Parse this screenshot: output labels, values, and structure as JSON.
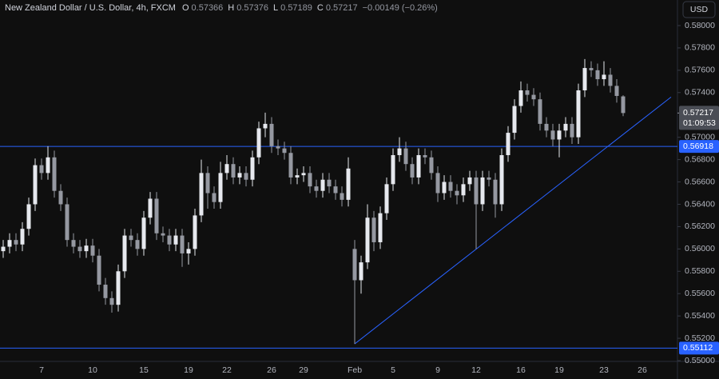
{
  "chart_data": {
    "type": "candlestick",
    "title": "New Zealand Dollar / U.S. Dollar, 4h, FXCM",
    "ohlc_labels": [
      "O",
      "H",
      "L",
      "C"
    ],
    "ohlc": [
      0.57366,
      0.57376,
      0.57189,
      0.57217
    ],
    "change": "−0.00149 (−0.26%)",
    "currency": "USD",
    "categories": [
      null,
      null,
      null,
      null,
      null,
      null,
      "7",
      null,
      null,
      null,
      null,
      null,
      null,
      null,
      "10",
      null,
      null,
      null,
      null,
      null,
      null,
      null,
      "15",
      null,
      null,
      null,
      null,
      null,
      null,
      "19",
      null,
      null,
      null,
      null,
      null,
      "22",
      null,
      null,
      null,
      null,
      null,
      null,
      "26",
      null,
      null,
      null,
      null,
      "29",
      null,
      null,
      null,
      null,
      null,
      null,
      null,
      "Feb",
      null,
      null,
      null,
      null,
      null,
      "5",
      null,
      null,
      null,
      null,
      null,
      null,
      "9",
      null,
      null,
      null,
      null,
      null,
      "12",
      null,
      null,
      null,
      null,
      null,
      null,
      "16",
      null,
      null,
      null,
      null,
      null,
      "19",
      null,
      null,
      null,
      null,
      null,
      null,
      "23",
      null,
      null,
      null,
      null,
      null,
      "26"
    ],
    "open": [
      0.5598,
      0.5602,
      0.5608,
      0.5604,
      0.5618,
      0.564,
      0.5675,
      0.5668,
      0.5682,
      0.5652,
      0.564,
      0.5608,
      0.5602,
      0.5598,
      0.5603,
      0.5594,
      0.5568,
      0.5556,
      0.555,
      0.558,
      0.5612,
      0.5608,
      0.56,
      0.5628,
      0.5645,
      0.5614,
      0.5612,
      0.5604,
      0.5612,
      0.5596,
      0.56,
      0.563,
      0.5668,
      0.565,
      0.5642,
      0.5668,
      0.5676,
      0.5664,
      0.5668,
      0.5662,
      0.5682,
      0.5708,
      0.5712,
      0.5692,
      0.569,
      0.5686,
      0.5664,
      0.5666,
      0.5668,
      0.5656,
      0.5652,
      0.5662,
      0.5656,
      0.565,
      0.5644,
      0.56,
      0.5572,
      0.5588,
      0.5628,
      0.5606,
      0.5632,
      0.5658,
      0.5684,
      0.569,
      0.5676,
      0.5664,
      0.5684,
      0.5682,
      0.5668,
      0.565,
      0.566,
      0.5652,
      0.5648,
      0.5658,
      0.5664,
      0.564,
      0.5664,
      0.5662,
      0.564,
      0.5684,
      0.5704,
      0.5728,
      0.5742,
      0.5738,
      0.5734,
      0.5712,
      0.5706,
      0.5698,
      0.5706,
      0.5712,
      0.57,
      0.5742,
      0.5762,
      0.576,
      0.5752,
      0.5756,
      0.5746,
      0.57366,
      null,
      null,
      null
    ],
    "high": [
      0.5608,
      0.5614,
      0.5614,
      0.5624,
      0.5646,
      0.5681,
      0.5681,
      0.5692,
      0.5688,
      0.5658,
      0.5646,
      0.5614,
      0.5608,
      0.5609,
      0.5609,
      0.56,
      0.5574,
      0.5562,
      0.5586,
      0.5618,
      0.5618,
      0.5614,
      0.5634,
      0.5651,
      0.5651,
      0.562,
      0.5618,
      0.5618,
      0.5618,
      0.5606,
      0.5636,
      0.568,
      0.5674,
      0.5656,
      0.5678,
      0.5684,
      0.5682,
      0.5674,
      0.5674,
      0.5688,
      0.5714,
      0.5722,
      0.5718,
      0.5698,
      0.5696,
      0.5692,
      0.5672,
      0.5674,
      0.5674,
      0.5662,
      0.5668,
      0.5668,
      0.5662,
      0.5656,
      0.5682,
      0.5608,
      0.5594,
      0.564,
      0.5634,
      0.5638,
      0.5664,
      0.569,
      0.57,
      0.5696,
      0.5682,
      0.569,
      0.569,
      0.5688,
      0.5674,
      0.5666,
      0.5666,
      0.5658,
      0.5664,
      0.567,
      0.567,
      0.567,
      0.567,
      0.5668,
      0.569,
      0.571,
      0.5734,
      0.575,
      0.5748,
      0.5744,
      0.574,
      0.5718,
      0.5712,
      0.5712,
      0.5718,
      0.5718,
      0.5748,
      0.577,
      0.5768,
      0.5766,
      0.5768,
      0.5762,
      0.5752,
      0.57376,
      null,
      null,
      null
    ],
    "low": [
      0.5592,
      0.5596,
      0.5598,
      0.5598,
      0.5612,
      0.5634,
      0.5662,
      0.5662,
      0.5646,
      0.5634,
      0.5602,
      0.5596,
      0.5592,
      0.5592,
      0.5588,
      0.5562,
      0.555,
      0.5543,
      0.5544,
      0.5574,
      0.5602,
      0.5594,
      0.5594,
      0.5622,
      0.5608,
      0.5606,
      0.5598,
      0.5598,
      0.5584,
      0.5586,
      0.5594,
      0.5624,
      0.5636,
      0.5636,
      0.5636,
      0.5662,
      0.5658,
      0.5658,
      0.5656,
      0.5656,
      0.5676,
      0.57,
      0.5686,
      0.5684,
      0.568,
      0.5658,
      0.5658,
      0.566,
      0.565,
      0.5646,
      0.5646,
      0.565,
      0.5644,
      0.5638,
      0.5638,
      0.5515,
      0.556,
      0.5582,
      0.5598,
      0.56,
      0.5626,
      0.5652,
      0.5678,
      0.567,
      0.5658,
      0.5658,
      0.5676,
      0.5662,
      0.5642,
      0.5644,
      0.5646,
      0.564,
      0.5642,
      0.5652,
      0.56,
      0.5634,
      0.5656,
      0.5628,
      0.5634,
      0.5678,
      0.5698,
      0.5722,
      0.5732,
      0.5728,
      0.5706,
      0.57,
      0.5692,
      0.5682,
      0.57,
      0.5694,
      0.5694,
      0.5736,
      0.5754,
      0.5746,
      0.5746,
      0.574,
      0.5731,
      0.57189,
      null,
      null,
      null
    ],
    "close": [
      0.5602,
      0.5608,
      0.5604,
      0.5618,
      0.564,
      0.5675,
      0.5668,
      0.5682,
      0.5652,
      0.564,
      0.5608,
      0.5602,
      0.5598,
      0.5603,
      0.5594,
      0.5568,
      0.5556,
      0.555,
      0.558,
      0.5612,
      0.5608,
      0.56,
      0.5628,
      0.5645,
      0.5614,
      0.5612,
      0.5604,
      0.5612,
      0.5596,
      0.56,
      0.563,
      0.5668,
      0.565,
      0.5642,
      0.5668,
      0.5676,
      0.5664,
      0.5668,
      0.5662,
      0.5682,
      0.5708,
      0.5712,
      0.5692,
      0.569,
      0.5686,
      0.5664,
      0.5666,
      0.5668,
      0.5656,
      0.5652,
      0.5662,
      0.5656,
      0.565,
      0.5644,
      0.5672,
      0.5572,
      0.5588,
      0.5628,
      0.5606,
      0.5632,
      0.5658,
      0.5684,
      0.569,
      0.5676,
      0.5664,
      0.5684,
      0.5682,
      0.5668,
      0.565,
      0.566,
      0.5652,
      0.5648,
      0.5658,
      0.5664,
      0.564,
      0.5664,
      0.5662,
      0.564,
      0.5684,
      0.5704,
      0.5728,
      0.5742,
      0.5738,
      0.5734,
      0.5712,
      0.5706,
      0.5698,
      0.5706,
      0.5712,
      0.57,
      0.5742,
      0.5762,
      0.576,
      0.5752,
      0.5756,
      0.5746,
      0.5737,
      0.57217,
      null,
      null,
      null
    ],
    "up_color": "#e6e8ee",
    "down_color": "#9598a1",
    "ylim": [
      0.54993,
      0.58229
    ],
    "yticks": [
      {
        "value": 0.58,
        "label": "0.58000"
      },
      {
        "value": 0.578,
        "label": "0.57800"
      },
      {
        "value": 0.576,
        "label": "0.57600"
      },
      {
        "value": 0.574,
        "label": "0.57400"
      },
      {
        "value": 0.57,
        "label": "0.57000"
      },
      {
        "value": 0.568,
        "label": "0.56800"
      },
      {
        "value": 0.566,
        "label": "0.56600"
      },
      {
        "value": 0.564,
        "label": "0.56400"
      },
      {
        "value": 0.562,
        "label": "0.56200"
      },
      {
        "value": 0.56,
        "label": "0.56000"
      },
      {
        "value": 0.558,
        "label": "0.55800"
      },
      {
        "value": 0.556,
        "label": "0.55600"
      },
      {
        "value": 0.554,
        "label": "0.55400"
      },
      {
        "value": 0.552,
        "label": "0.55200"
      },
      {
        "value": 0.55,
        "label": "0.55000"
      }
    ],
    "last_price": 0.57217,
    "countdown": "01:09:53",
    "levels": [
      0.56918,
      0.55112
    ],
    "level_color": "#2962ff",
    "trendline": {
      "start": {
        "index": 55,
        "value": 0.5515
      },
      "end": {
        "index": 104.5,
        "value": 0.5736
      }
    }
  }
}
